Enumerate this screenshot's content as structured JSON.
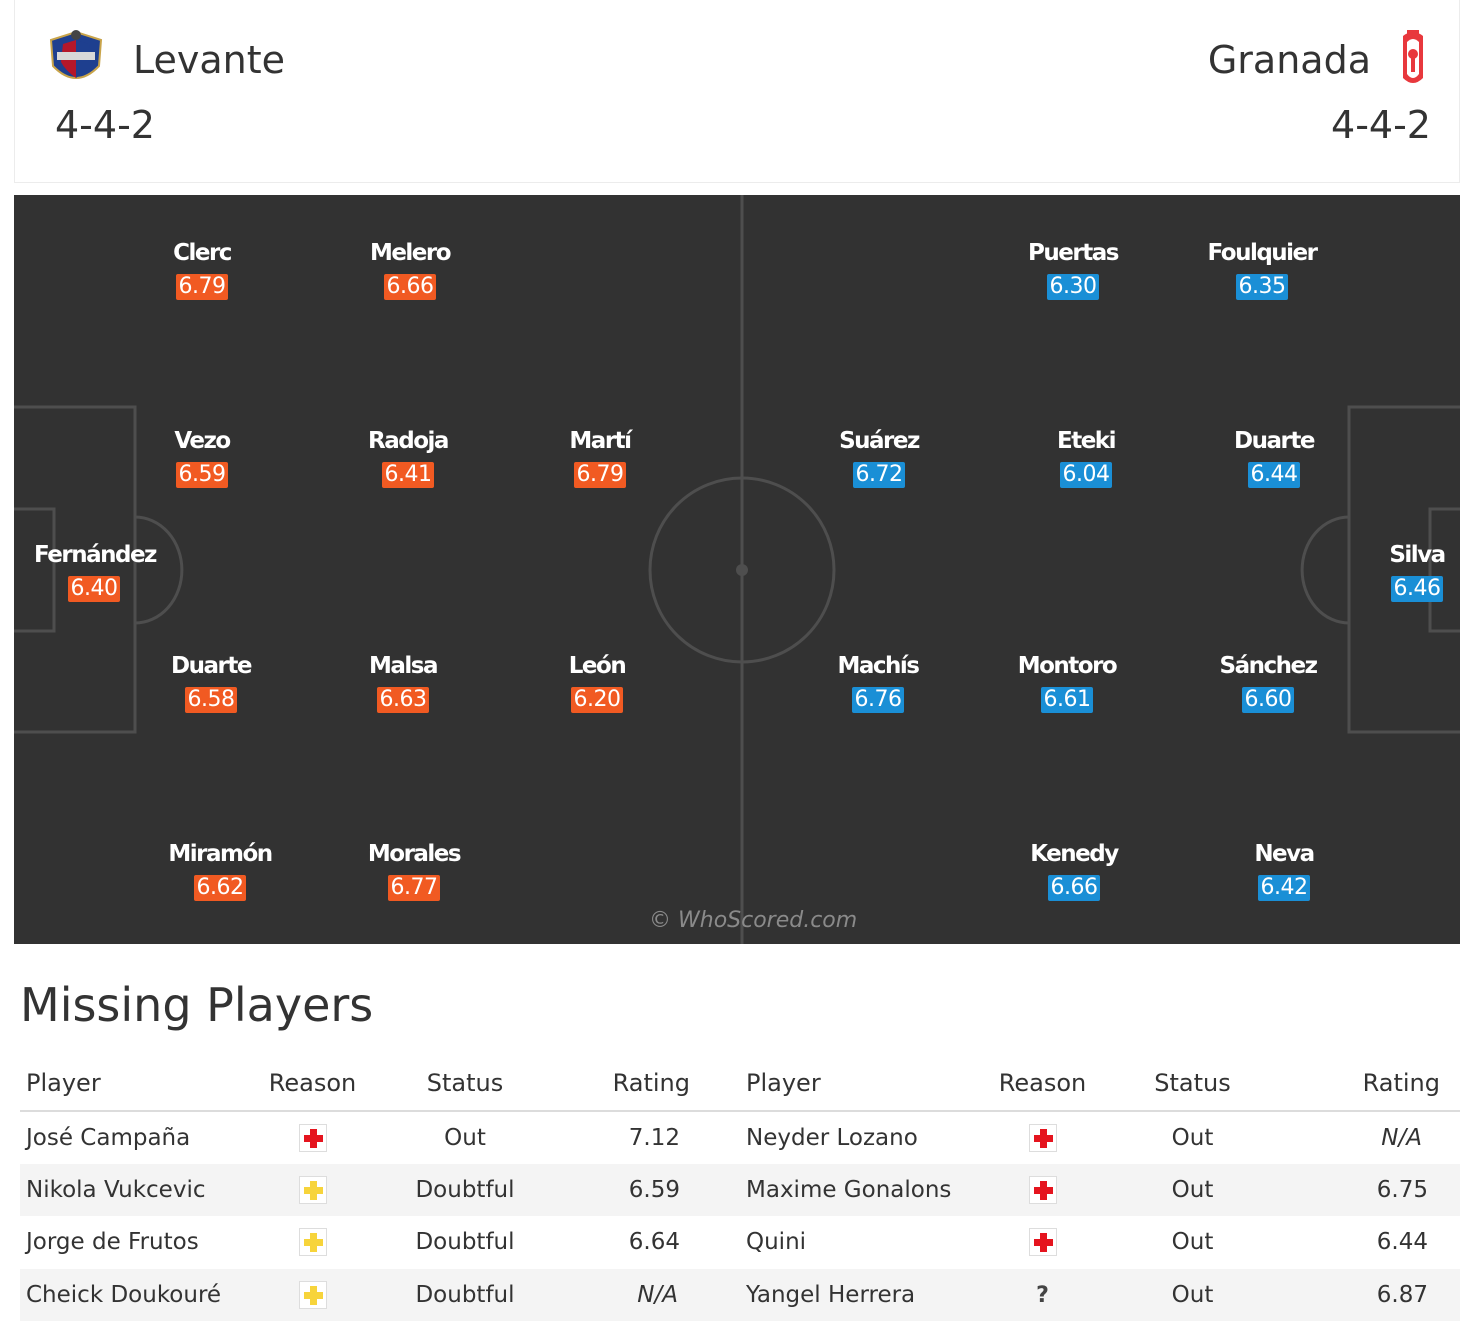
{
  "header": {
    "home": {
      "name": "Levante",
      "formation": "4-4-2",
      "crest_icon": "levante-crest-icon"
    },
    "away": {
      "name": "Granada",
      "formation": "4-4-2",
      "crest_icon": "granada-crest-icon"
    }
  },
  "pitch": {
    "watermark": "© WhoScored.com",
    "home_players": [
      {
        "name": "Fernández",
        "rating": "6.40"
      },
      {
        "name": "Vezo",
        "rating": "6.59"
      },
      {
        "name": "Duarte",
        "rating": "6.58"
      },
      {
        "name": "Clerc",
        "rating": "6.79"
      },
      {
        "name": "Miramón",
        "rating": "6.62"
      },
      {
        "name": "Radoja",
        "rating": "6.41"
      },
      {
        "name": "Malsa",
        "rating": "6.63"
      },
      {
        "name": "Melero",
        "rating": "6.66"
      },
      {
        "name": "Morales",
        "rating": "6.77"
      },
      {
        "name": "Martí",
        "rating": "6.79"
      },
      {
        "name": "León",
        "rating": "6.20"
      }
    ],
    "away_players": [
      {
        "name": "Silva",
        "rating": "6.46"
      },
      {
        "name": "Duarte",
        "rating": "6.44"
      },
      {
        "name": "Sánchez",
        "rating": "6.60"
      },
      {
        "name": "Foulquier",
        "rating": "6.35"
      },
      {
        "name": "Neva",
        "rating": "6.42"
      },
      {
        "name": "Eteki",
        "rating": "6.04"
      },
      {
        "name": "Montoro",
        "rating": "6.61"
      },
      {
        "name": "Puertas",
        "rating": "6.30"
      },
      {
        "name": "Kenedy",
        "rating": "6.66"
      },
      {
        "name": "Suárez",
        "rating": "6.72"
      },
      {
        "name": "Machís",
        "rating": "6.76"
      }
    ],
    "colors": {
      "pitch": "#323232",
      "home_rating": "#f15a22",
      "away_rating": "#1a8fd6"
    }
  },
  "missing": {
    "title": "Missing Players",
    "columns": [
      "Player",
      "Reason",
      "Status",
      "Rating",
      "Player",
      "Reason",
      "Status",
      "Rating"
    ],
    "rows": [
      {
        "home": {
          "player": "José Campaña",
          "reason": "injury",
          "status": "Out",
          "rating": "7.12"
        },
        "away": {
          "player": "Neyder Lozano",
          "reason": "injury",
          "status": "Out",
          "rating": "N/A"
        }
      },
      {
        "home": {
          "player": "Nikola Vukcevic",
          "reason": "doubt",
          "status": "Doubtful",
          "rating": "6.59"
        },
        "away": {
          "player": "Maxime Gonalons",
          "reason": "injury",
          "status": "Out",
          "rating": "6.75"
        }
      },
      {
        "home": {
          "player": "Jorge de Frutos",
          "reason": "doubt",
          "status": "Doubtful",
          "rating": "6.64"
        },
        "away": {
          "player": "Quini",
          "reason": "injury",
          "status": "Out",
          "rating": "6.44"
        }
      },
      {
        "home": {
          "player": "Cheick Doukouré",
          "reason": "doubt",
          "status": "Doubtful",
          "rating": "N/A"
        },
        "away": {
          "player": "Yangel Herrera",
          "reason": "unknown",
          "status": "Out",
          "rating": "6.87",
          "reason_label": "?"
        }
      }
    ]
  }
}
